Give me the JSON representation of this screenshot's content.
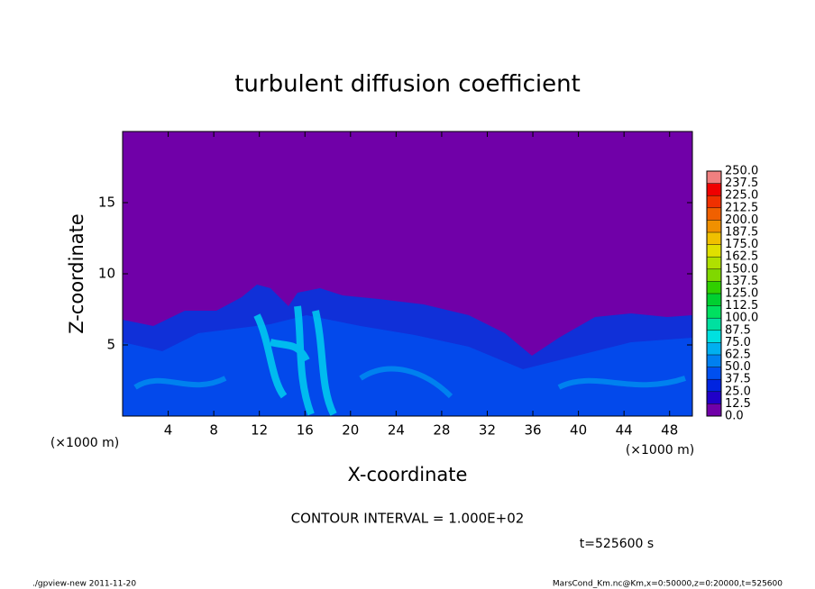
{
  "chart_data": {
    "type": "contour",
    "title": "turbulent diffusion coefficient",
    "xlabel": "X-coordinate",
    "ylabel": "Z-coordinate",
    "x_unit": "(×1000 m)",
    "x_unit_right": "(×1000 m)",
    "xlim": [
      0,
      50
    ],
    "xticks": [
      4,
      8,
      12,
      16,
      20,
      24,
      28,
      32,
      36,
      40,
      44,
      48
    ],
    "ylim": [
      0,
      20
    ],
    "yticks": [
      5,
      10,
      15
    ],
    "background_color": "#7000a8",
    "colorbar": {
      "ticks": [
        {
          "value": 0,
          "label": "0.0"
        },
        {
          "value": 12.5,
          "label": "12.5"
        },
        {
          "value": 25,
          "label": "25.0"
        },
        {
          "value": 37.5,
          "label": "37.5"
        },
        {
          "value": 50,
          "label": "50.0"
        },
        {
          "value": 62.5,
          "label": "62.5"
        },
        {
          "value": 75,
          "label": "75.0"
        },
        {
          "value": 87.5,
          "label": "87.5"
        },
        {
          "value": 100,
          "label": "100.0"
        },
        {
          "value": 112.5,
          "label": "112.5"
        },
        {
          "value": 125,
          "label": "125.0"
        },
        {
          "value": 137.5,
          "label": "137.5"
        },
        {
          "value": 150,
          "label": "150.0"
        },
        {
          "value": 162.5,
          "label": "162.5"
        },
        {
          "value": 175,
          "label": "175.0"
        },
        {
          "value": 187.5,
          "label": "187.5"
        },
        {
          "value": 200,
          "label": "200.0"
        },
        {
          "value": 212.5,
          "label": "212.5"
        },
        {
          "value": 225,
          "label": "225.0"
        },
        {
          "value": 237.5,
          "label": "237.5"
        },
        {
          "value": 250,
          "label": "250.0"
        }
      ],
      "colors": [
        "#7000a8",
        "#2000c8",
        "#0024e0",
        "#0050f0",
        "#0080f0",
        "#00b0f0",
        "#00e0e0",
        "#00e0a0",
        "#00e060",
        "#00d030",
        "#30d000",
        "#80d800",
        "#b0e000",
        "#e0e000",
        "#f0c000",
        "#f09000",
        "#f06000",
        "#f03000",
        "#f00000",
        "#f08080"
      ]
    },
    "contour_interval": "CONTOUR INTERVAL = 1.000E+02",
    "time_label": "t=525600 s",
    "footer_left": "./gpview-new   2011-11-20",
    "footer_right": "MarsCond_Km.nc@Km,x=0:50000,z=0:20000,t=525600"
  }
}
